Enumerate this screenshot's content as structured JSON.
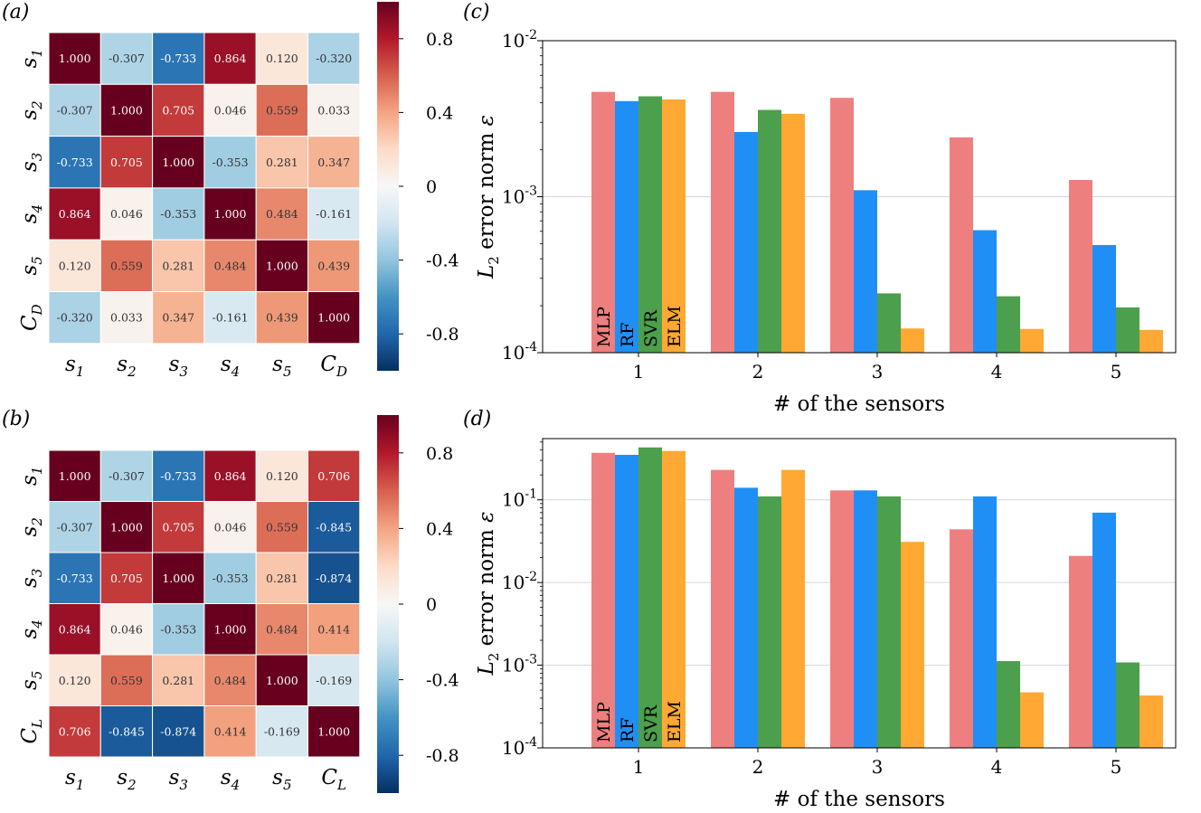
{
  "panels": {
    "a": "(a)",
    "b": "(b)",
    "c": "(c)",
    "d": "(d)"
  },
  "colorbar_ticks": [
    "0.8",
    "0.4",
    "0",
    "-0.4",
    "-0.8"
  ],
  "colors": {
    "MLP": "#ee7f7f",
    "RF": "#1f8ff5",
    "SVR": "#4c9f4c",
    "ELM": "#ffa833"
  },
  "chart_data": [
    {
      "id": "a",
      "type": "heatmap",
      "title": "",
      "row_labels": [
        "s1",
        "s2",
        "s3",
        "s4",
        "s5",
        "CD"
      ],
      "col_labels": [
        "s1",
        "s2",
        "s3",
        "s4",
        "s5",
        "CD"
      ],
      "vmin": -1,
      "vmax": 1,
      "values": [
        [
          "1.000",
          "-0.307",
          "-0.733",
          "0.864",
          "0.120",
          "-0.320"
        ],
        [
          "-0.307",
          "1.000",
          "0.705",
          "0.046",
          "0.559",
          "0.033"
        ],
        [
          "-0.733",
          "0.705",
          "1.000",
          "-0.353",
          "0.281",
          "0.347"
        ],
        [
          "0.864",
          "0.046",
          "-0.353",
          "1.000",
          "0.484",
          "-0.161"
        ],
        [
          "0.120",
          "0.559",
          "0.281",
          "0.484",
          "1.000",
          "0.439"
        ],
        [
          "-0.320",
          "0.033",
          "0.347",
          "-0.161",
          "0.439",
          "1.000"
        ]
      ]
    },
    {
      "id": "b",
      "type": "heatmap",
      "title": "",
      "row_labels": [
        "s1",
        "s2",
        "s3",
        "s4",
        "s5",
        "CL"
      ],
      "col_labels": [
        "s1",
        "s2",
        "s3",
        "s4",
        "s5",
        "CL"
      ],
      "vmin": -1,
      "vmax": 1,
      "values": [
        [
          "1.000",
          "-0.307",
          "-0.733",
          "0.864",
          "0.120",
          "0.706"
        ],
        [
          "-0.307",
          "1.000",
          "0.705",
          "0.046",
          "0.559",
          "-0.845"
        ],
        [
          "-0.733",
          "0.705",
          "1.000",
          "-0.353",
          "0.281",
          "-0.874"
        ],
        [
          "0.864",
          "0.046",
          "-0.353",
          "1.000",
          "0.484",
          "0.414"
        ],
        [
          "0.120",
          "0.559",
          "0.281",
          "0.484",
          "1.000",
          "-0.169"
        ],
        [
          "0.706",
          "-0.845",
          "-0.874",
          "0.414",
          "-0.169",
          "1.000"
        ]
      ]
    },
    {
      "id": "c",
      "type": "bar",
      "yscale": "log",
      "xlabel": "# of the sensors",
      "ylabel": "L2 error norm ε",
      "ylim": [
        0.0001,
        0.01
      ],
      "yticks": [
        "10-4",
        "10-3",
        "10-2"
      ],
      "categories": [
        "1",
        "2",
        "3",
        "4",
        "5"
      ],
      "bar_labels": [
        "MLP",
        "RF",
        "SVR",
        "ELM"
      ],
      "series": [
        {
          "name": "MLP",
          "values": [
            0.0047,
            0.0047,
            0.0043,
            0.0024,
            0.00128
          ]
        },
        {
          "name": "RF",
          "values": [
            0.0041,
            0.0026,
            0.0011,
            0.00061,
            0.00049
          ]
        },
        {
          "name": "SVR",
          "values": [
            0.0044,
            0.0036,
            0.00024,
            0.00023,
            0.000195
          ]
        },
        {
          "name": "ELM",
          "values": [
            0.0042,
            0.0034,
            0.000143,
            0.000142,
            0.00014
          ]
        }
      ]
    },
    {
      "id": "d",
      "type": "bar",
      "yscale": "log",
      "xlabel": "# of the sensors",
      "ylabel": "L2 error norm ε",
      "ylim": [
        0.0001,
        0.55
      ],
      "yticks": [
        "10-4",
        "10-3",
        "10-2",
        "10-1"
      ],
      "categories": [
        "1",
        "2",
        "3",
        "4",
        "5"
      ],
      "bar_labels": [
        "MLP",
        "RF",
        "SVR",
        "ELM"
      ],
      "series": [
        {
          "name": "MLP",
          "values": [
            0.37,
            0.23,
            0.13,
            0.044,
            0.021
          ]
        },
        {
          "name": "RF",
          "values": [
            0.35,
            0.14,
            0.13,
            0.11,
            0.07
          ]
        },
        {
          "name": "SVR",
          "values": [
            0.43,
            0.11,
            0.11,
            0.00112,
            0.00108
          ]
        },
        {
          "name": "ELM",
          "values": [
            0.39,
            0.23,
            0.031,
            0.00047,
            0.00043
          ]
        }
      ]
    }
  ]
}
